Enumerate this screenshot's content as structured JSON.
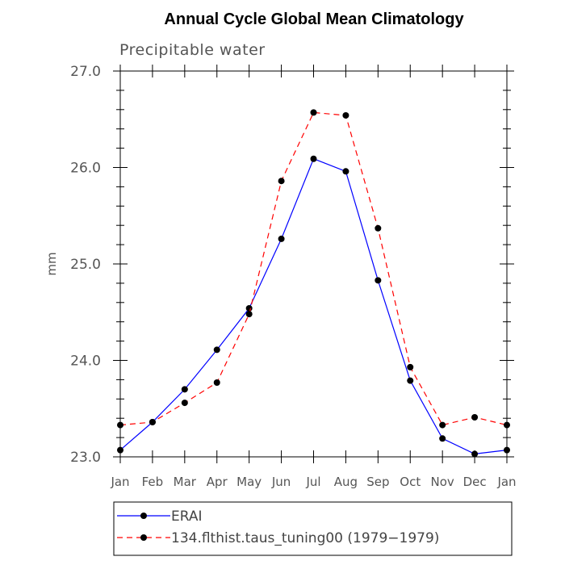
{
  "chart_data": {
    "type": "line",
    "title": "Annual Cycle Global Mean Climatology",
    "subtitle": "Precipitable water",
    "xlabel": "",
    "ylabel": "mm",
    "categories": [
      "Jan",
      "Feb",
      "Mar",
      "Apr",
      "May",
      "Jun",
      "Jul",
      "Aug",
      "Sep",
      "Oct",
      "Nov",
      "Dec",
      "Jan"
    ],
    "ylim": [
      23.0,
      27.0
    ],
    "yticks": [
      "23.0",
      "24.0",
      "25.0",
      "26.0",
      "27.0"
    ],
    "series": [
      {
        "name": "ERAI",
        "color": "#0000ff",
        "dash": "solid",
        "values": [
          23.07,
          23.36,
          23.7,
          24.11,
          24.54,
          25.26,
          26.09,
          25.96,
          24.83,
          23.79,
          23.19,
          23.03,
          23.07
        ]
      },
      {
        "name": "134.flthist.taus_tuning00 (1979−1979)",
        "color": "#ff0000",
        "dash": "dashed",
        "values": [
          23.33,
          23.36,
          23.56,
          23.77,
          24.48,
          25.86,
          26.57,
          26.54,
          25.37,
          23.93,
          23.33,
          23.41,
          23.33
        ]
      }
    ],
    "legend_position": "bottom"
  }
}
